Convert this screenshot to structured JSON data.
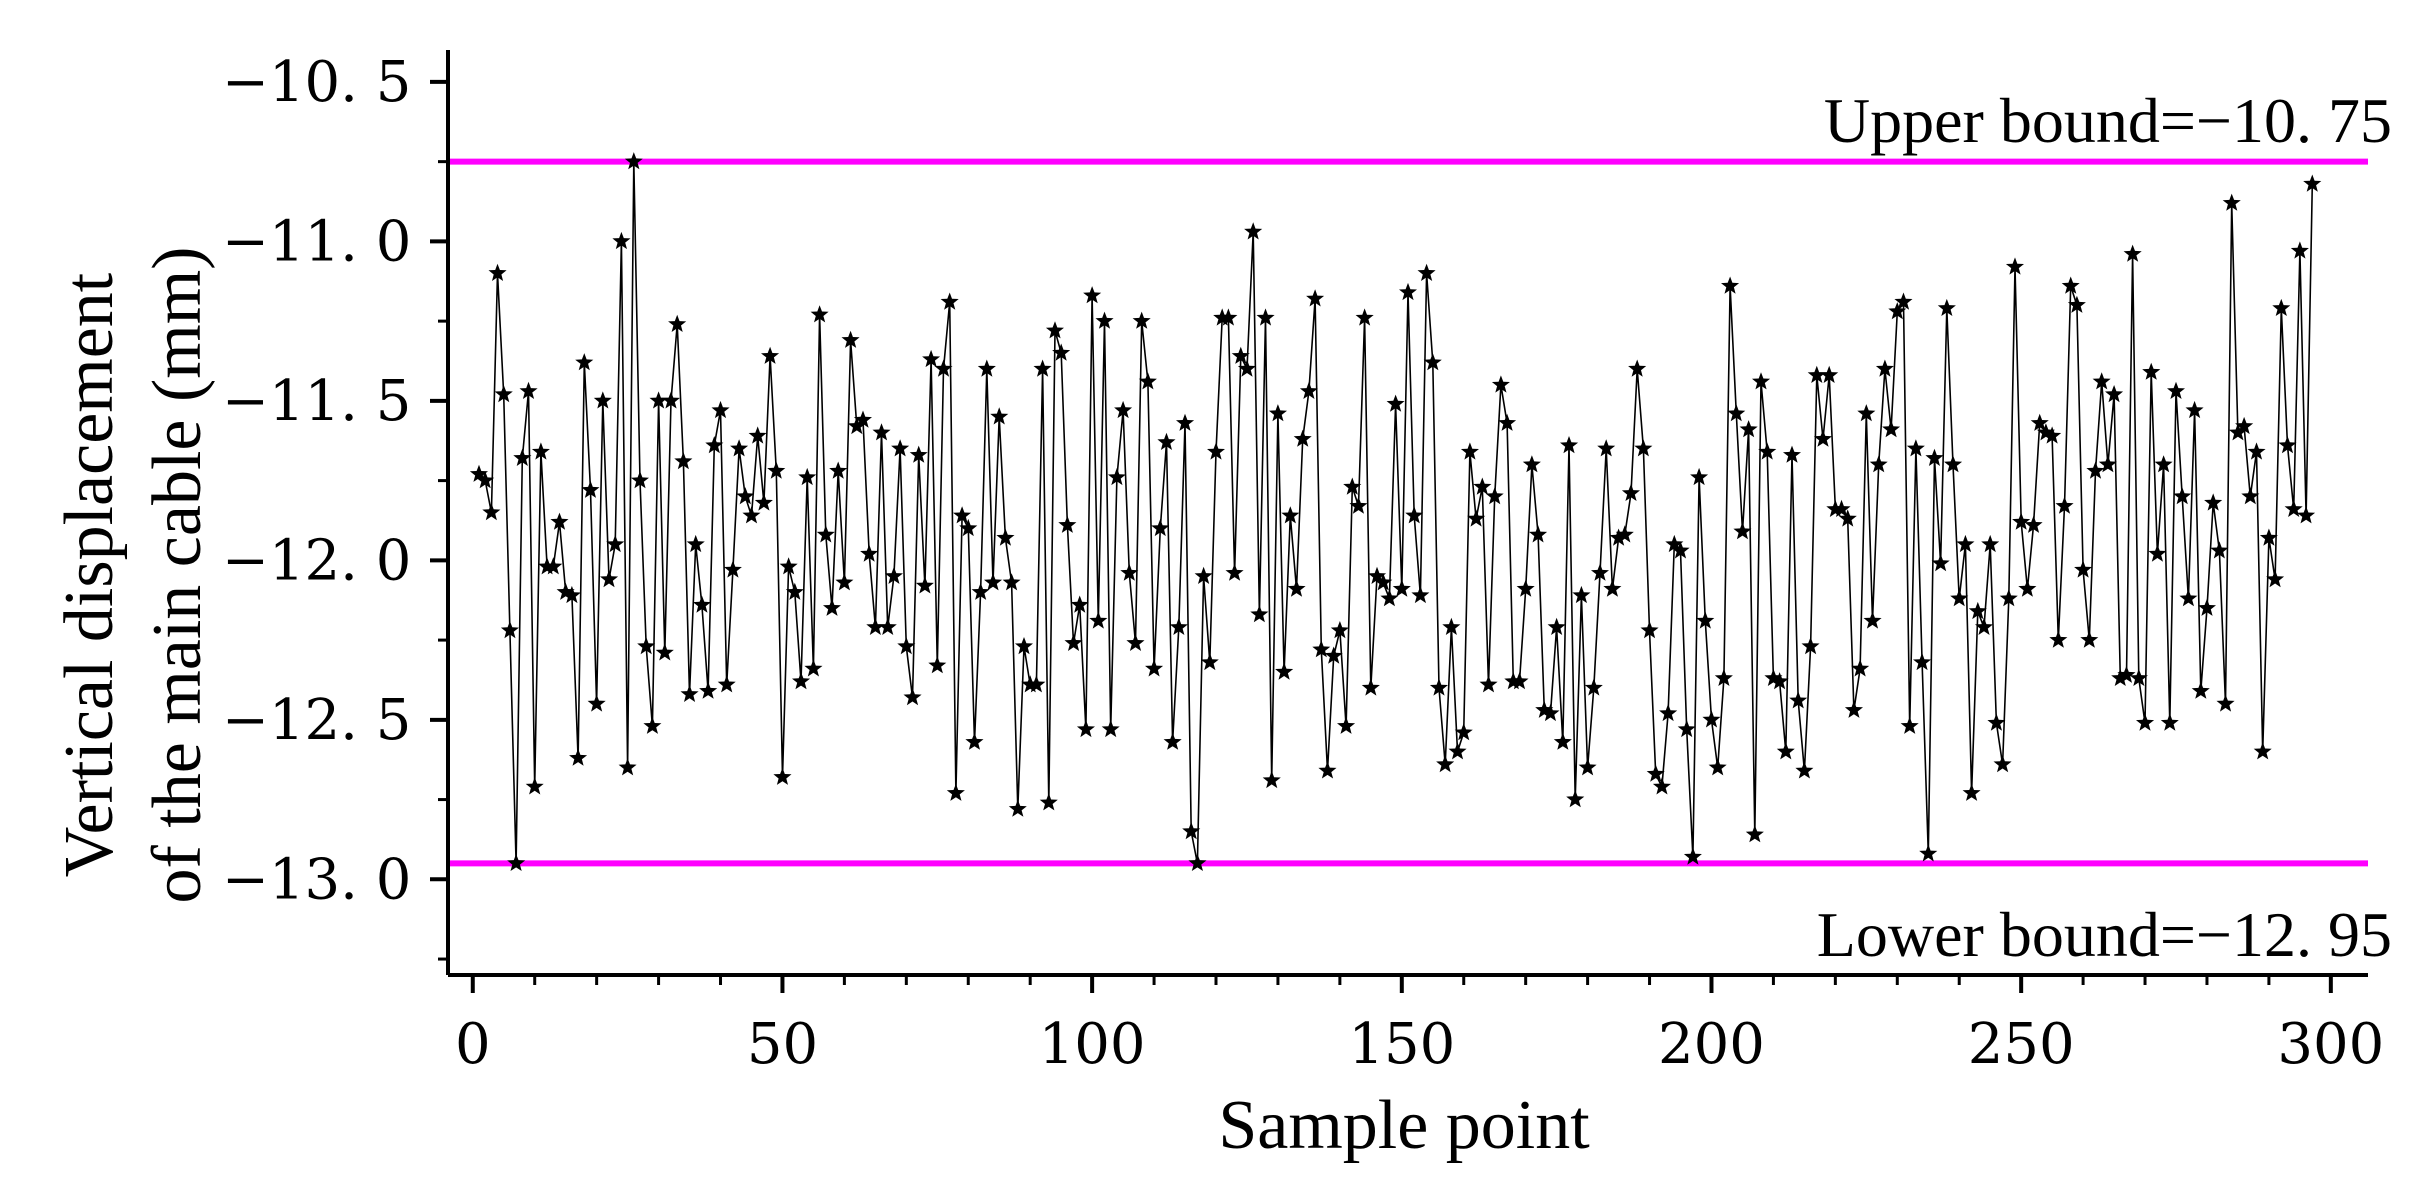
{
  "chart_data": {
    "type": "line",
    "xlabel": "Sample point",
    "ylabel_lines": [
      "Vertical displacement",
      "of the main cable (mm)"
    ],
    "xlim": [
      -4,
      306
    ],
    "ylim": [
      -13.3,
      -10.4
    ],
    "x_ticks": [
      0,
      50,
      100,
      150,
      200,
      250,
      300
    ],
    "x_tick_labels": [
      "0",
      "50",
      "100",
      "150",
      "200",
      "250",
      "300"
    ],
    "y_ticks": [
      -10.5,
      -11.0,
      -11.5,
      -12.0,
      -12.5,
      -13.0
    ],
    "y_tick_labels": [
      "−10. 5",
      "−11. 0",
      "−11. 5",
      "−12. 0",
      "−12. 5",
      "−13. 0"
    ],
    "x_minor_step": 10,
    "y_minor_step": 0.25,
    "grid": false,
    "marker": "star",
    "line_color": "#000000",
    "bound_color": "#ff00ff",
    "upper_bound": {
      "value": -10.75,
      "label": "Upper bound=−10. 75"
    },
    "lower_bound": {
      "value": -12.95,
      "label": "Lower bound=−12. 95"
    },
    "x_start": 1,
    "values": [
      -11.73,
      -11.75,
      -11.85,
      -11.1,
      -11.48,
      -12.22,
      -12.95,
      -11.68,
      -11.47,
      -12.71,
      -11.66,
      -12.02,
      -12.02,
      -11.88,
      -12.1,
      -12.11,
      -12.62,
      -11.38,
      -11.78,
      -12.45,
      -11.5,
      -12.06,
      -11.95,
      -11.0,
      -12.65,
      -10.75,
      -11.75,
      -12.27,
      -12.52,
      -11.5,
      -12.29,
      -11.5,
      -11.26,
      -11.69,
      -12.42,
      -11.95,
      -12.14,
      -12.41,
      -11.64,
      -11.53,
      -12.39,
      -12.03,
      -11.65,
      -11.8,
      -11.86,
      -11.61,
      -11.82,
      -11.36,
      -11.72,
      -12.68,
      -12.02,
      -12.1,
      -12.38,
      -11.74,
      -12.34,
      -11.23,
      -11.92,
      -12.15,
      -11.72,
      -12.07,
      -11.31,
      -11.58,
      -11.56,
      -11.98,
      -12.21,
      -11.6,
      -12.21,
      -12.05,
      -11.65,
      -12.27,
      -12.43,
      -11.67,
      -12.08,
      -11.37,
      -12.33,
      -11.4,
      -11.19,
      -12.73,
      -11.86,
      -11.9,
      -12.57,
      -12.1,
      -11.4,
      -12.07,
      -11.55,
      -11.93,
      -12.07,
      -12.78,
      -12.27,
      -12.39,
      -12.39,
      -11.4,
      -12.76,
      -11.28,
      -11.35,
      -11.89,
      -12.26,
      -12.14,
      -12.53,
      -11.17,
      -12.19,
      -11.25,
      -12.53,
      -11.74,
      -11.53,
      -12.04,
      -12.26,
      -11.25,
      -11.44,
      -12.34,
      -11.9,
      -11.63,
      -12.57,
      -12.21,
      -11.57,
      -12.85,
      -12.95,
      -12.05,
      -12.32,
      -11.66,
      -11.24,
      -11.24,
      -12.04,
      -11.36,
      -11.4,
      -10.97,
      -12.17,
      -11.24,
      -12.69,
      -11.54,
      -12.35,
      -11.86,
      -12.09,
      -11.62,
      -11.47,
      -11.18,
      -12.28,
      -12.66,
      -12.3,
      -12.22,
      -12.52,
      -11.77,
      -11.83,
      -11.24,
      -12.4,
      -12.05,
      -12.07,
      -12.12,
      -11.51,
      -12.09,
      -11.16,
      -11.86,
      -12.11,
      -11.1,
      -11.38,
      -12.4,
      -12.64,
      -12.21,
      -12.6,
      -12.54,
      -11.66,
      -11.87,
      -11.77,
      -12.39,
      -11.8,
      -11.45,
      -11.57,
      -12.38,
      -12.38,
      -12.09,
      -11.7,
      -11.92,
      -12.47,
      -12.48,
      -12.21,
      -12.57,
      -11.64,
      -12.75,
      -12.11,
      -12.65,
      -12.4,
      -12.04,
      -11.65,
      -12.09,
      -11.93,
      -11.92,
      -11.79,
      -11.4,
      -11.65,
      -12.22,
      -12.67,
      -12.71,
      -12.48,
      -11.95,
      -11.97,
      -12.53,
      -12.93,
      -11.74,
      -12.19,
      -12.5,
      -12.65,
      -12.37,
      -11.14,
      -11.54,
      -11.91,
      -11.59,
      -12.86,
      -11.44,
      -11.66,
      -12.37,
      -12.38,
      -12.6,
      -11.67,
      -12.44,
      -12.66,
      -12.27,
      -11.42,
      -11.62,
      -11.42,
      -11.84,
      -11.84,
      -11.87,
      -12.47,
      -12.34,
      -11.54,
      -12.19,
      -11.7,
      -11.4,
      -11.59,
      -11.22,
      -11.19,
      -12.52,
      -11.65,
      -12.32,
      -12.92,
      -11.68,
      -12.01,
      -11.21,
      -11.7,
      -12.12,
      -11.95,
      -12.73,
      -12.16,
      -12.21,
      -11.95,
      -12.51,
      -12.64,
      -12.12,
      -11.08,
      -11.88,
      -12.09,
      -11.89,
      -11.57,
      -11.6,
      -11.61,
      -12.25,
      -11.83,
      -11.14,
      -11.2,
      -12.03,
      -12.25,
      -11.72,
      -11.44,
      -11.7,
      -11.48,
      -12.37,
      -12.36,
      -11.04,
      -12.37,
      -12.51,
      -11.41,
      -11.98,
      -11.7,
      -12.51,
      -11.47,
      -11.8,
      -12.12,
      -11.53,
      -12.41,
      -12.15,
      -11.82,
      -11.97,
      -12.45,
      -10.88,
      -11.6,
      -11.58,
      -11.8,
      -11.66,
      -12.6,
      -11.93,
      -12.06,
      -11.21,
      -11.64,
      -11.84,
      -11.03,
      -11.86,
      -10.82
    ]
  }
}
